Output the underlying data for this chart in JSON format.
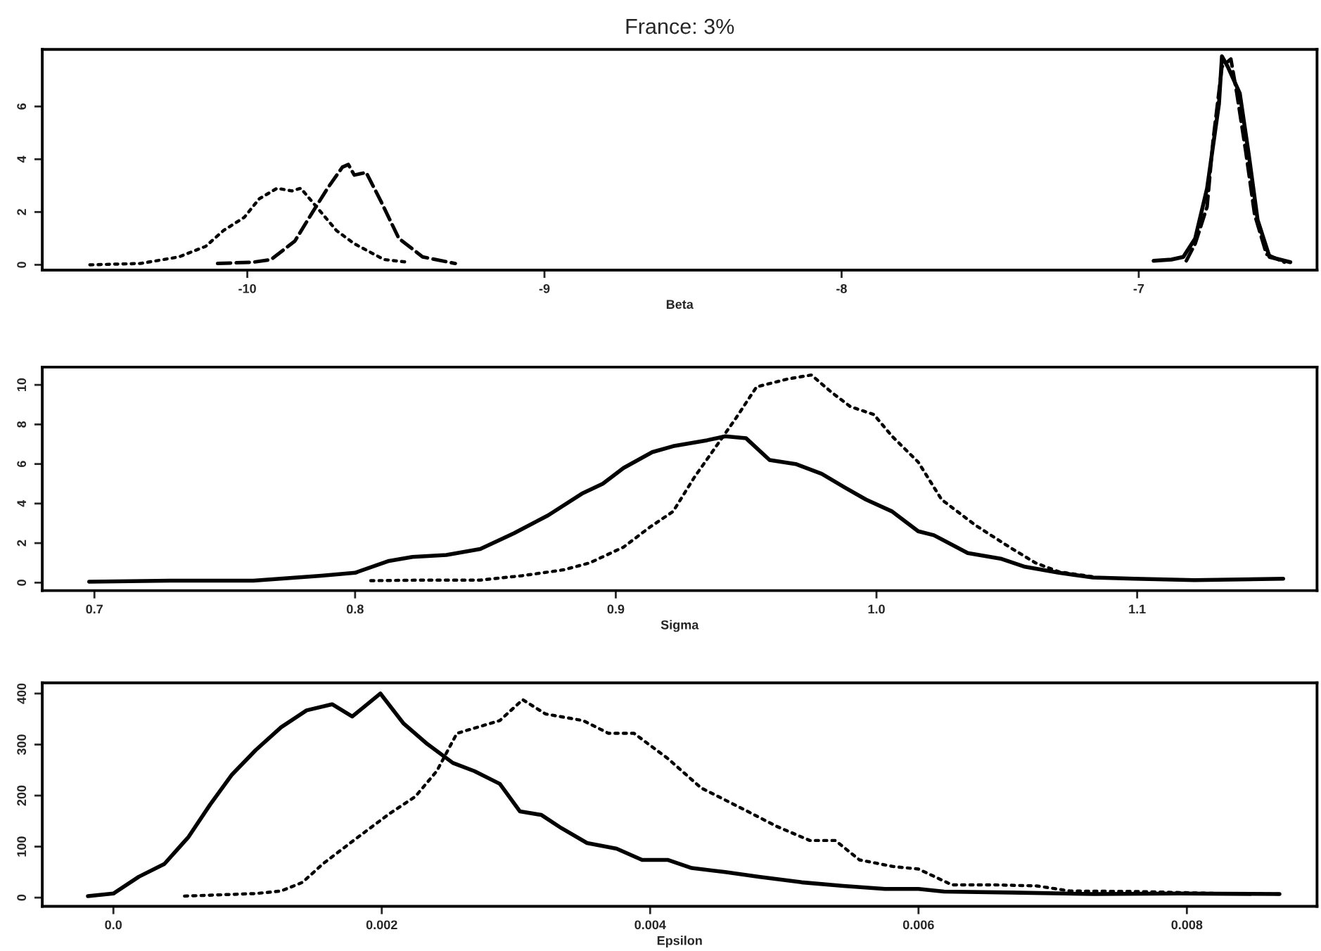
{
  "chart_data": [
    {
      "type": "line",
      "title": "France: 3%",
      "xlabel": "Beta",
      "xlim": [
        -10.69,
        -6.4
      ],
      "ylim": [
        -0.2,
        8.16
      ],
      "xticks": [
        -10,
        -9,
        -8,
        -7
      ],
      "yticks": [
        0,
        2,
        4,
        6
      ],
      "grid": false,
      "legend": false,
      "series": [
        {
          "color": "#000000",
          "line_style": "dotted",
          "x": [
            -10.53,
            -10.36,
            -10.23,
            -10.14,
            -10.08,
            -10.01,
            -9.96,
            -9.9,
            -9.85,
            -9.82,
            -9.76,
            -9.7,
            -9.64,
            -9.54,
            -9.46
          ],
          "values": [
            0,
            0.05,
            0.3,
            0.7,
            1.3,
            1.8,
            2.5,
            2.9,
            2.8,
            2.9,
            2.1,
            1.3,
            0.8,
            0.2,
            0.1
          ]
        },
        {
          "color": "#000000",
          "line_style": "dashed",
          "x": [
            -10.1,
            -9.98,
            -9.92,
            -9.84,
            -9.78,
            -9.73,
            -9.68,
            -9.66,
            -9.64,
            -9.6,
            -9.55,
            -9.49,
            -9.41,
            -9.3
          ],
          "values": [
            0.05,
            0.1,
            0.2,
            0.9,
            2.0,
            2.9,
            3.7,
            3.8,
            3.4,
            3.5,
            2.4,
            1.0,
            0.3,
            0.05
          ]
        },
        {
          "color": "#000000",
          "line_style": "solid",
          "x": [
            -6.95,
            -6.89,
            -6.85,
            -6.81,
            -6.77,
            -6.73,
            -6.72,
            -6.7,
            -6.66,
            -6.63,
            -6.6,
            -6.56,
            -6.49
          ],
          "values": [
            0.15,
            0.2,
            0.3,
            1.0,
            2.9,
            6.1,
            7.9,
            7.5,
            6.5,
            4.2,
            1.7,
            0.3,
            0.1
          ]
        },
        {
          "color": "#000000",
          "line_style": "dashed",
          "x": [
            -6.84,
            -6.81,
            -6.77,
            -6.75,
            -6.72,
            -6.69,
            -6.67,
            -6.64,
            -6.61,
            -6.57,
            -6.51
          ],
          "values": [
            0.15,
            0.8,
            2.2,
            4.7,
            7.5,
            7.8,
            6.5,
            4.3,
            1.9,
            0.4,
            0.1
          ]
        }
      ]
    },
    {
      "type": "line",
      "xlabel": "Sigma",
      "xlim": [
        0.68,
        1.169
      ],
      "ylim": [
        -0.4,
        10.9
      ],
      "xticks": [
        0.7,
        0.8,
        0.9,
        {
          "value": 1.0,
          "label": "1.0"
        },
        1.1
      ],
      "yticks": [
        0,
        2,
        4,
        6,
        8,
        10
      ],
      "grid": false,
      "legend": false,
      "series": [
        {
          "color": "#000000",
          "line_style": "solid",
          "x": [
            0.698,
            0.729,
            0.761,
            0.787,
            0.8,
            0.813,
            0.822,
            0.835,
            0.848,
            0.861,
            0.874,
            0.887,
            0.895,
            0.903,
            0.914,
            0.922,
            0.935,
            0.942,
            0.95,
            0.959,
            0.969,
            0.979,
            0.988,
            0.996,
            1.006,
            1.016,
            1.022,
            1.035,
            1.048,
            1.057,
            1.07,
            1.083,
            1.099,
            1.122,
            1.156
          ],
          "values": [
            0.05,
            0.1,
            0.1,
            0.35,
            0.5,
            1.1,
            1.3,
            1.4,
            1.7,
            2.5,
            3.4,
            4.5,
            5.0,
            5.8,
            6.6,
            6.9,
            7.2,
            7.4,
            7.3,
            6.2,
            6.0,
            5.5,
            4.8,
            4.2,
            3.6,
            2.6,
            2.4,
            1.5,
            1.2,
            0.8,
            0.5,
            0.26,
            0.2,
            0.13,
            0.2
          ]
        },
        {
          "color": "#000000",
          "line_style": "dotted",
          "x": [
            0.806,
            0.826,
            0.848,
            0.864,
            0.88,
            0.89,
            0.903,
            0.913,
            0.922,
            0.93,
            0.938,
            0.946,
            0.954,
            0.966,
            0.975,
            0.983,
            0.99,
            0.999,
            1.006,
            1.016,
            1.025,
            1.038,
            1.051,
            1.061,
            1.07,
            1.083
          ],
          "values": [
            0.1,
            0.13,
            0.13,
            0.35,
            0.65,
            1.0,
            1.8,
            2.8,
            3.6,
            5.3,
            6.8,
            8.3,
            9.9,
            10.3,
            10.5,
            9.6,
            8.9,
            8.5,
            7.4,
            6.1,
            4.2,
            2.9,
            1.8,
            1.0,
            0.55,
            0.3
          ]
        }
      ]
    },
    {
      "type": "line",
      "xlabel": "Epsilon",
      "xlim": [
        -0.00053,
        0.00897
      ],
      "ylim": [
        -17,
        421
      ],
      "xticks": [
        {
          "value": 0,
          "label": "0.0"
        },
        0.002,
        0.004,
        0.006,
        0.008
      ],
      "yticks": [
        0,
        100,
        200,
        300,
        400
      ],
      "grid": false,
      "legend": false,
      "series": [
        {
          "color": "#000000",
          "line_style": "solid",
          "x": [
            -0.00019,
            0,
            0.00019,
            0.00038,
            0.00056,
            0.00072,
            0.00088,
            0.00106,
            0.00125,
            0.00144,
            0.00163,
            0.00178,
            0.00199,
            0.00216,
            0.00234,
            0.00253,
            0.00269,
            0.00288,
            0.00303,
            0.00319,
            0.00334,
            0.00353,
            0.00375,
            0.00394,
            0.00413,
            0.00431,
            0.00456,
            0.00481,
            0.00513,
            0.00544,
            0.00575,
            0.006,
            0.00619,
            0.00669,
            0.00731,
            0.00794,
            0.00869
          ],
          "values": [
            3,
            8,
            41,
            66,
            119,
            182,
            240,
            289,
            334,
            367,
            379,
            355,
            400,
            342,
            301,
            264,
            248,
            223,
            169,
            162,
            136,
            107,
            96,
            74,
            74,
            58,
            50,
            41,
            30,
            23,
            17,
            17,
            12,
            10,
            7,
            8,
            7
          ]
        },
        {
          "color": "#000000",
          "line_style": "dotted",
          "x": [
            0.00053,
            0.00106,
            0.00125,
            0.00141,
            0.00156,
            0.00181,
            0.00206,
            0.00225,
            0.00241,
            0.00256,
            0.00288,
            0.00305,
            0.00322,
            0.0035,
            0.00369,
            0.00388,
            0.00413,
            0.00438,
            0.00469,
            0.00494,
            0.00519,
            0.00538,
            0.00556,
            0.00581,
            0.006,
            0.00625,
            0.00656,
            0.00688,
            0.00713,
            0.00763,
            0.00825,
            0.00872
          ],
          "values": [
            3,
            8,
            13,
            30,
            66,
            116,
            165,
            198,
            248,
            322,
            347,
            388,
            360,
            347,
            322,
            322,
            273,
            215,
            174,
            140,
            112,
            112,
            74,
            61,
            56,
            25,
            25,
            23,
            13,
            12,
            8,
            7
          ]
        }
      ]
    }
  ]
}
